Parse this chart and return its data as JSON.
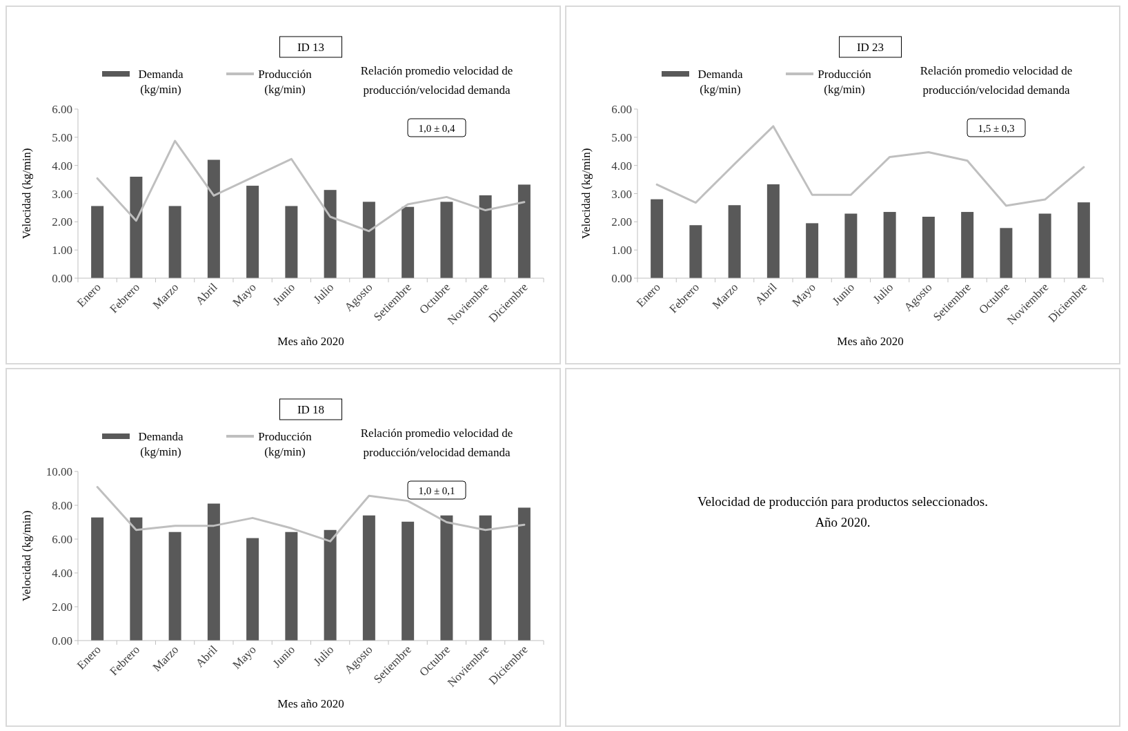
{
  "chart_data": [
    {
      "type": "bar",
      "title": "ID 13",
      "xlabel": "Mes año 2020",
      "ylabel": "Velocidad (kg/min)",
      "categories": [
        "Enero",
        "Febrero",
        "Marzo",
        "Abril",
        "Mayo",
        "Junio",
        "Julio",
        "Agosto",
        "Setiembre",
        "Octubre",
        "Noviembre",
        "Diciembre"
      ],
      "series": [
        {
          "name": "Demanda (kg/min)",
          "type": "bar",
          "color": "#595959",
          "values": [
            2.56,
            3.6,
            2.56,
            4.2,
            3.28,
            2.56,
            3.13,
            2.71,
            2.53,
            2.71,
            2.94,
            3.32
          ]
        },
        {
          "name": "Producción (kg/min)",
          "type": "line",
          "color": "#bfbfbf",
          "values": [
            3.54,
            2.04,
            4.87,
            2.93,
            3.58,
            4.23,
            2.18,
            1.67,
            2.62,
            2.88,
            2.41,
            2.7
          ]
        }
      ],
      "ylim": [
        0,
        6
      ],
      "yticks": [
        {
          "value": 0,
          "label": "0.00"
        },
        {
          "value": 1,
          "label": "1.00"
        },
        {
          "value": 2,
          "label": "2.00"
        },
        {
          "value": 3,
          "label": "3.00"
        },
        {
          "value": 4,
          "label": "4.00"
        },
        {
          "value": 5,
          "label": "5.00"
        },
        {
          "value": 6,
          "label": "6.00"
        }
      ],
      "annotations": [
        "Relación promedio velocidad de producción/velocidad demanda",
        "1,0 ± 0,4"
      ],
      "legend": "top",
      "grid": false,
      "marker": "none",
      "line_style": "solid"
    },
    {
      "type": "bar",
      "title": "ID 23",
      "xlabel": "Mes año 2020",
      "ylabel": "Velocidad (kg/min)",
      "categories": [
        "Enero",
        "Febrero",
        "Marzo",
        "Abril",
        "Mayo",
        "Junio",
        "Julio",
        "Agosto",
        "Setiembre",
        "Octubre",
        "Noviembre",
        "Diciembre"
      ],
      "series": [
        {
          "name": "Demanda (kg/min)",
          "type": "bar",
          "color": "#595959",
          "values": [
            2.8,
            1.88,
            2.59,
            3.33,
            1.95,
            2.29,
            2.35,
            2.18,
            2.35,
            1.78,
            2.29,
            2.69
          ]
        },
        {
          "name": "Producción (kg/min)",
          "type": "line",
          "color": "#bfbfbf",
          "values": [
            3.32,
            2.68,
            4.05,
            5.39,
            2.96,
            2.96,
            4.3,
            4.47,
            4.17,
            2.57,
            2.79,
            3.94
          ]
        }
      ],
      "ylim": [
        0,
        6
      ],
      "yticks": [
        {
          "value": 0,
          "label": "0.00"
        },
        {
          "value": 1,
          "label": "1.00"
        },
        {
          "value": 2,
          "label": "2.00"
        },
        {
          "value": 3,
          "label": "3.00"
        },
        {
          "value": 4,
          "label": "4.00"
        },
        {
          "value": 5,
          "label": "5.00"
        },
        {
          "value": 6,
          "label": "6.00"
        }
      ],
      "annotations": [
        "Relación promedio velocidad de producción/velocidad demanda",
        "1,5 ± 0,3"
      ],
      "legend": "top",
      "grid": false,
      "marker": "none",
      "line_style": "solid"
    },
    {
      "type": "bar",
      "title": "ID 18",
      "xlabel": "Mes año 2020",
      "ylabel": "Velocidad (kg/min)",
      "categories": [
        "Enero",
        "Febrero",
        "Marzo",
        "Abril",
        "Mayo",
        "Junio",
        "Julio",
        "Agosto",
        "Setiembre",
        "Octubre",
        "Noviembre",
        "Diciembre"
      ],
      "series": [
        {
          "name": "Demanda (kg/min)",
          "type": "bar",
          "color": "#595959",
          "values": [
            7.28,
            7.28,
            6.42,
            8.1,
            6.06,
            6.42,
            6.54,
            7.4,
            7.03,
            7.4,
            7.4,
            7.86
          ]
        },
        {
          "name": "Producción (kg/min)",
          "type": "line",
          "color": "#bfbfbf",
          "values": [
            9.08,
            6.54,
            6.79,
            6.79,
            7.25,
            6.64,
            5.87,
            8.56,
            8.26,
            7.0,
            6.54,
            6.85
          ]
        }
      ],
      "ylim": [
        0,
        10
      ],
      "yticks": [
        {
          "value": 0,
          "label": "0.00"
        },
        {
          "value": 2,
          "label": "2.00"
        },
        {
          "value": 4,
          "label": "4.00"
        },
        {
          "value": 6,
          "label": "6.00"
        },
        {
          "value": 8,
          "label": "8.00"
        },
        {
          "value": 10,
          "label": "10.00"
        }
      ],
      "annotations": [
        "Relación promedio velocidad de producción/velocidad demanda",
        "1,0 ± 0,1"
      ],
      "legend": "top",
      "grid": false,
      "marker": "none",
      "line_style": "solid"
    },
    {
      "type": "other",
      "annotations": [
        "Velocidad de producción para productos seleccionados.",
        "Año 2020."
      ]
    }
  ]
}
